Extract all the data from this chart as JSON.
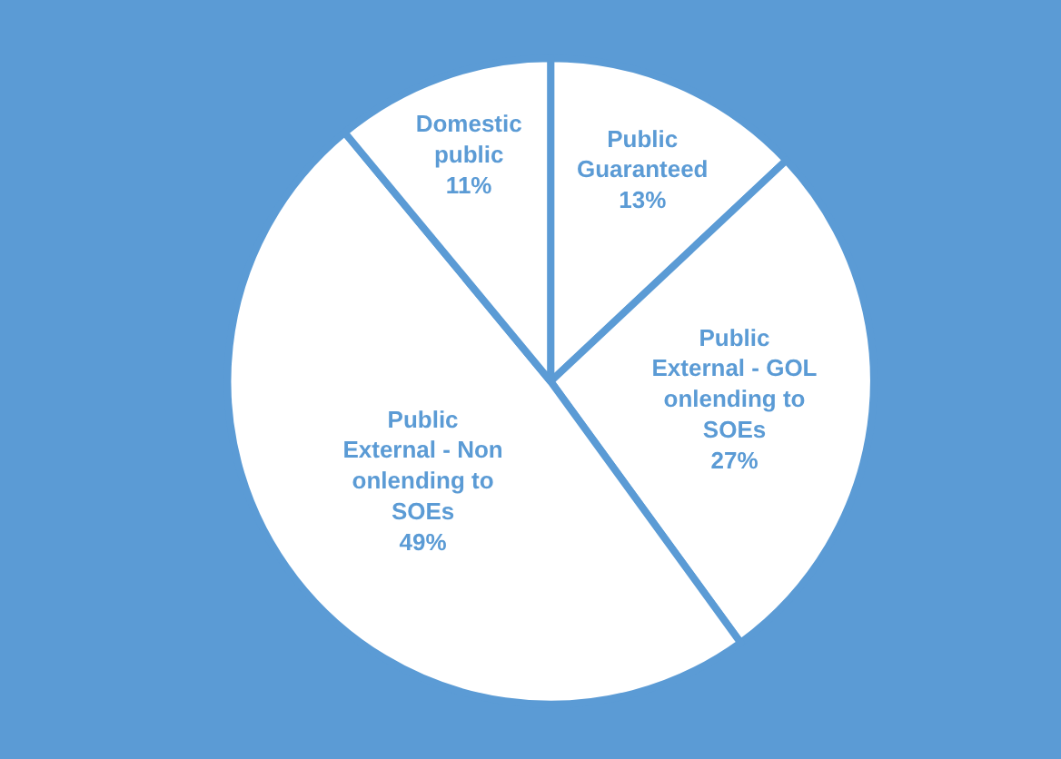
{
  "chart_data": {
    "type": "pie",
    "categories": [
      "Public Guaranteed",
      "Public External - GOL onlending to SOEs",
      "Public External - Non onlending to SOEs",
      "Domestic public"
    ],
    "values": [
      13,
      27,
      49,
      11
    ],
    "value_labels": [
      "13%",
      "27%",
      "49%",
      "11%"
    ],
    "colors": [
      "#ffffff",
      "#ffffff",
      "#ffffff",
      "#ffffff"
    ],
    "legend": false
  }
}
